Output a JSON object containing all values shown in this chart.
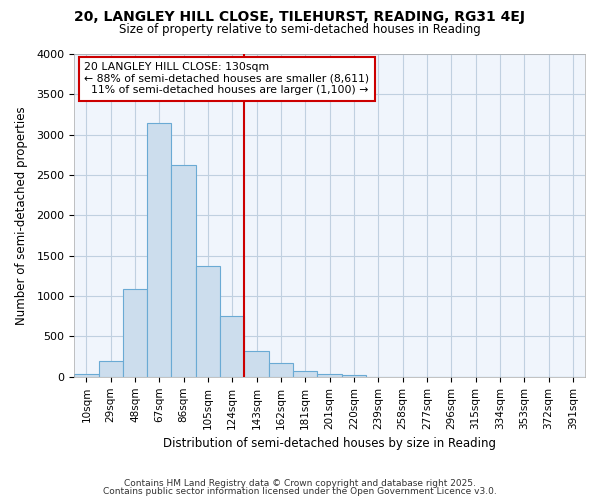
{
  "title1": "20, LANGLEY HILL CLOSE, TILEHURST, READING, RG31 4EJ",
  "title2": "Size of property relative to semi-detached houses in Reading",
  "xlabel": "Distribution of semi-detached houses by size in Reading",
  "ylabel": "Number of semi-detached properties",
  "bar_color": "#ccdded",
  "bar_edge_color": "#6aaad4",
  "bin_labels": [
    "10sqm",
    "29sqm",
    "48sqm",
    "67sqm",
    "86sqm",
    "105sqm",
    "124sqm",
    "143sqm",
    "162sqm",
    "181sqm",
    "201sqm",
    "220sqm",
    "239sqm",
    "258sqm",
    "277sqm",
    "296sqm",
    "315sqm",
    "334sqm",
    "353sqm",
    "372sqm",
    "391sqm"
  ],
  "bin_values": [
    30,
    190,
    1090,
    3150,
    2630,
    1370,
    750,
    320,
    175,
    75,
    40,
    25,
    0,
    0,
    0,
    0,
    0,
    0,
    0,
    0,
    0
  ],
  "vline_position": 6.5,
  "vline_color": "#cc0000",
  "annotation_text": "20 LANGLEY HILL CLOSE: 130sqm\n← 88% of semi-detached houses are smaller (8,611)\n  11% of semi-detached houses are larger (1,100) →",
  "annotation_box_color": "#ffffff",
  "annotation_border_color": "#cc0000",
  "ylim": [
    0,
    4000
  ],
  "yticks": [
    0,
    500,
    1000,
    1500,
    2000,
    2500,
    3000,
    3500,
    4000
  ],
  "grid_color": "#c0d0e0",
  "bg_color": "#f0f5fc",
  "footer1": "Contains HM Land Registry data © Crown copyright and database right 2025.",
  "footer2": "Contains public sector information licensed under the Open Government Licence v3.0."
}
